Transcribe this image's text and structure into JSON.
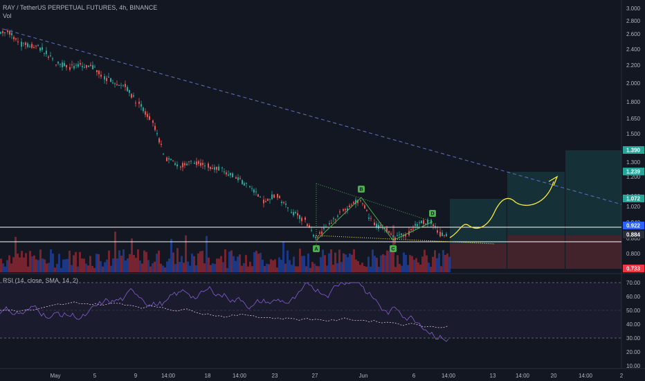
{
  "header": {
    "symbol": "RAY / TetherUS PERPETUAL FUTURES, 4h, BINANCE",
    "volume_label": "Vol"
  },
  "rsi": {
    "label": "RSI (14, close, SMA, 14, 2)",
    "upper_band": 70,
    "lower_band": 30,
    "ticks": [
      "70.00",
      "60.00",
      "50.00",
      "40.00",
      "30.00",
      "20.00",
      "10.00"
    ]
  },
  "price_axis": {
    "ticks": [
      "3.000",
      "2.800",
      "2.600",
      "2.400",
      "2.200",
      "2.000",
      "1.800",
      "1.650",
      "1.500",
      "1.300",
      "1.200",
      "1.100",
      "1.020",
      "0.940",
      "0.860",
      "0.800",
      "0.740"
    ]
  },
  "time_axis": {
    "ticks": [
      "May",
      "5",
      "9",
      "14:00",
      "18",
      "14:00",
      "23",
      "27",
      "Jun",
      "6",
      "14:00",
      "13",
      "14:00",
      "20",
      "14:00",
      "2"
    ]
  },
  "price_tags": [
    {
      "label": "1.390",
      "color": "#26a69a"
    },
    {
      "label": "1.239",
      "color": "#26a69a"
    },
    {
      "label": "1.072",
      "color": "#26a69a"
    },
    {
      "label": "0.922",
      "color": "#2962ff"
    },
    {
      "label": "0.884",
      "color": "#2a2e39"
    },
    {
      "label": "0.733",
      "color": "#f23645"
    }
  ],
  "pattern_points": [
    "A",
    "B",
    "C",
    "D"
  ],
  "colors": {
    "background": "#131722",
    "up": "#26a69a",
    "down": "#ef5350",
    "trendline": "#5b6bb8",
    "projection": "#ffeb3b",
    "pattern": "#4caf50",
    "rsi": "#9c27b0"
  }
}
